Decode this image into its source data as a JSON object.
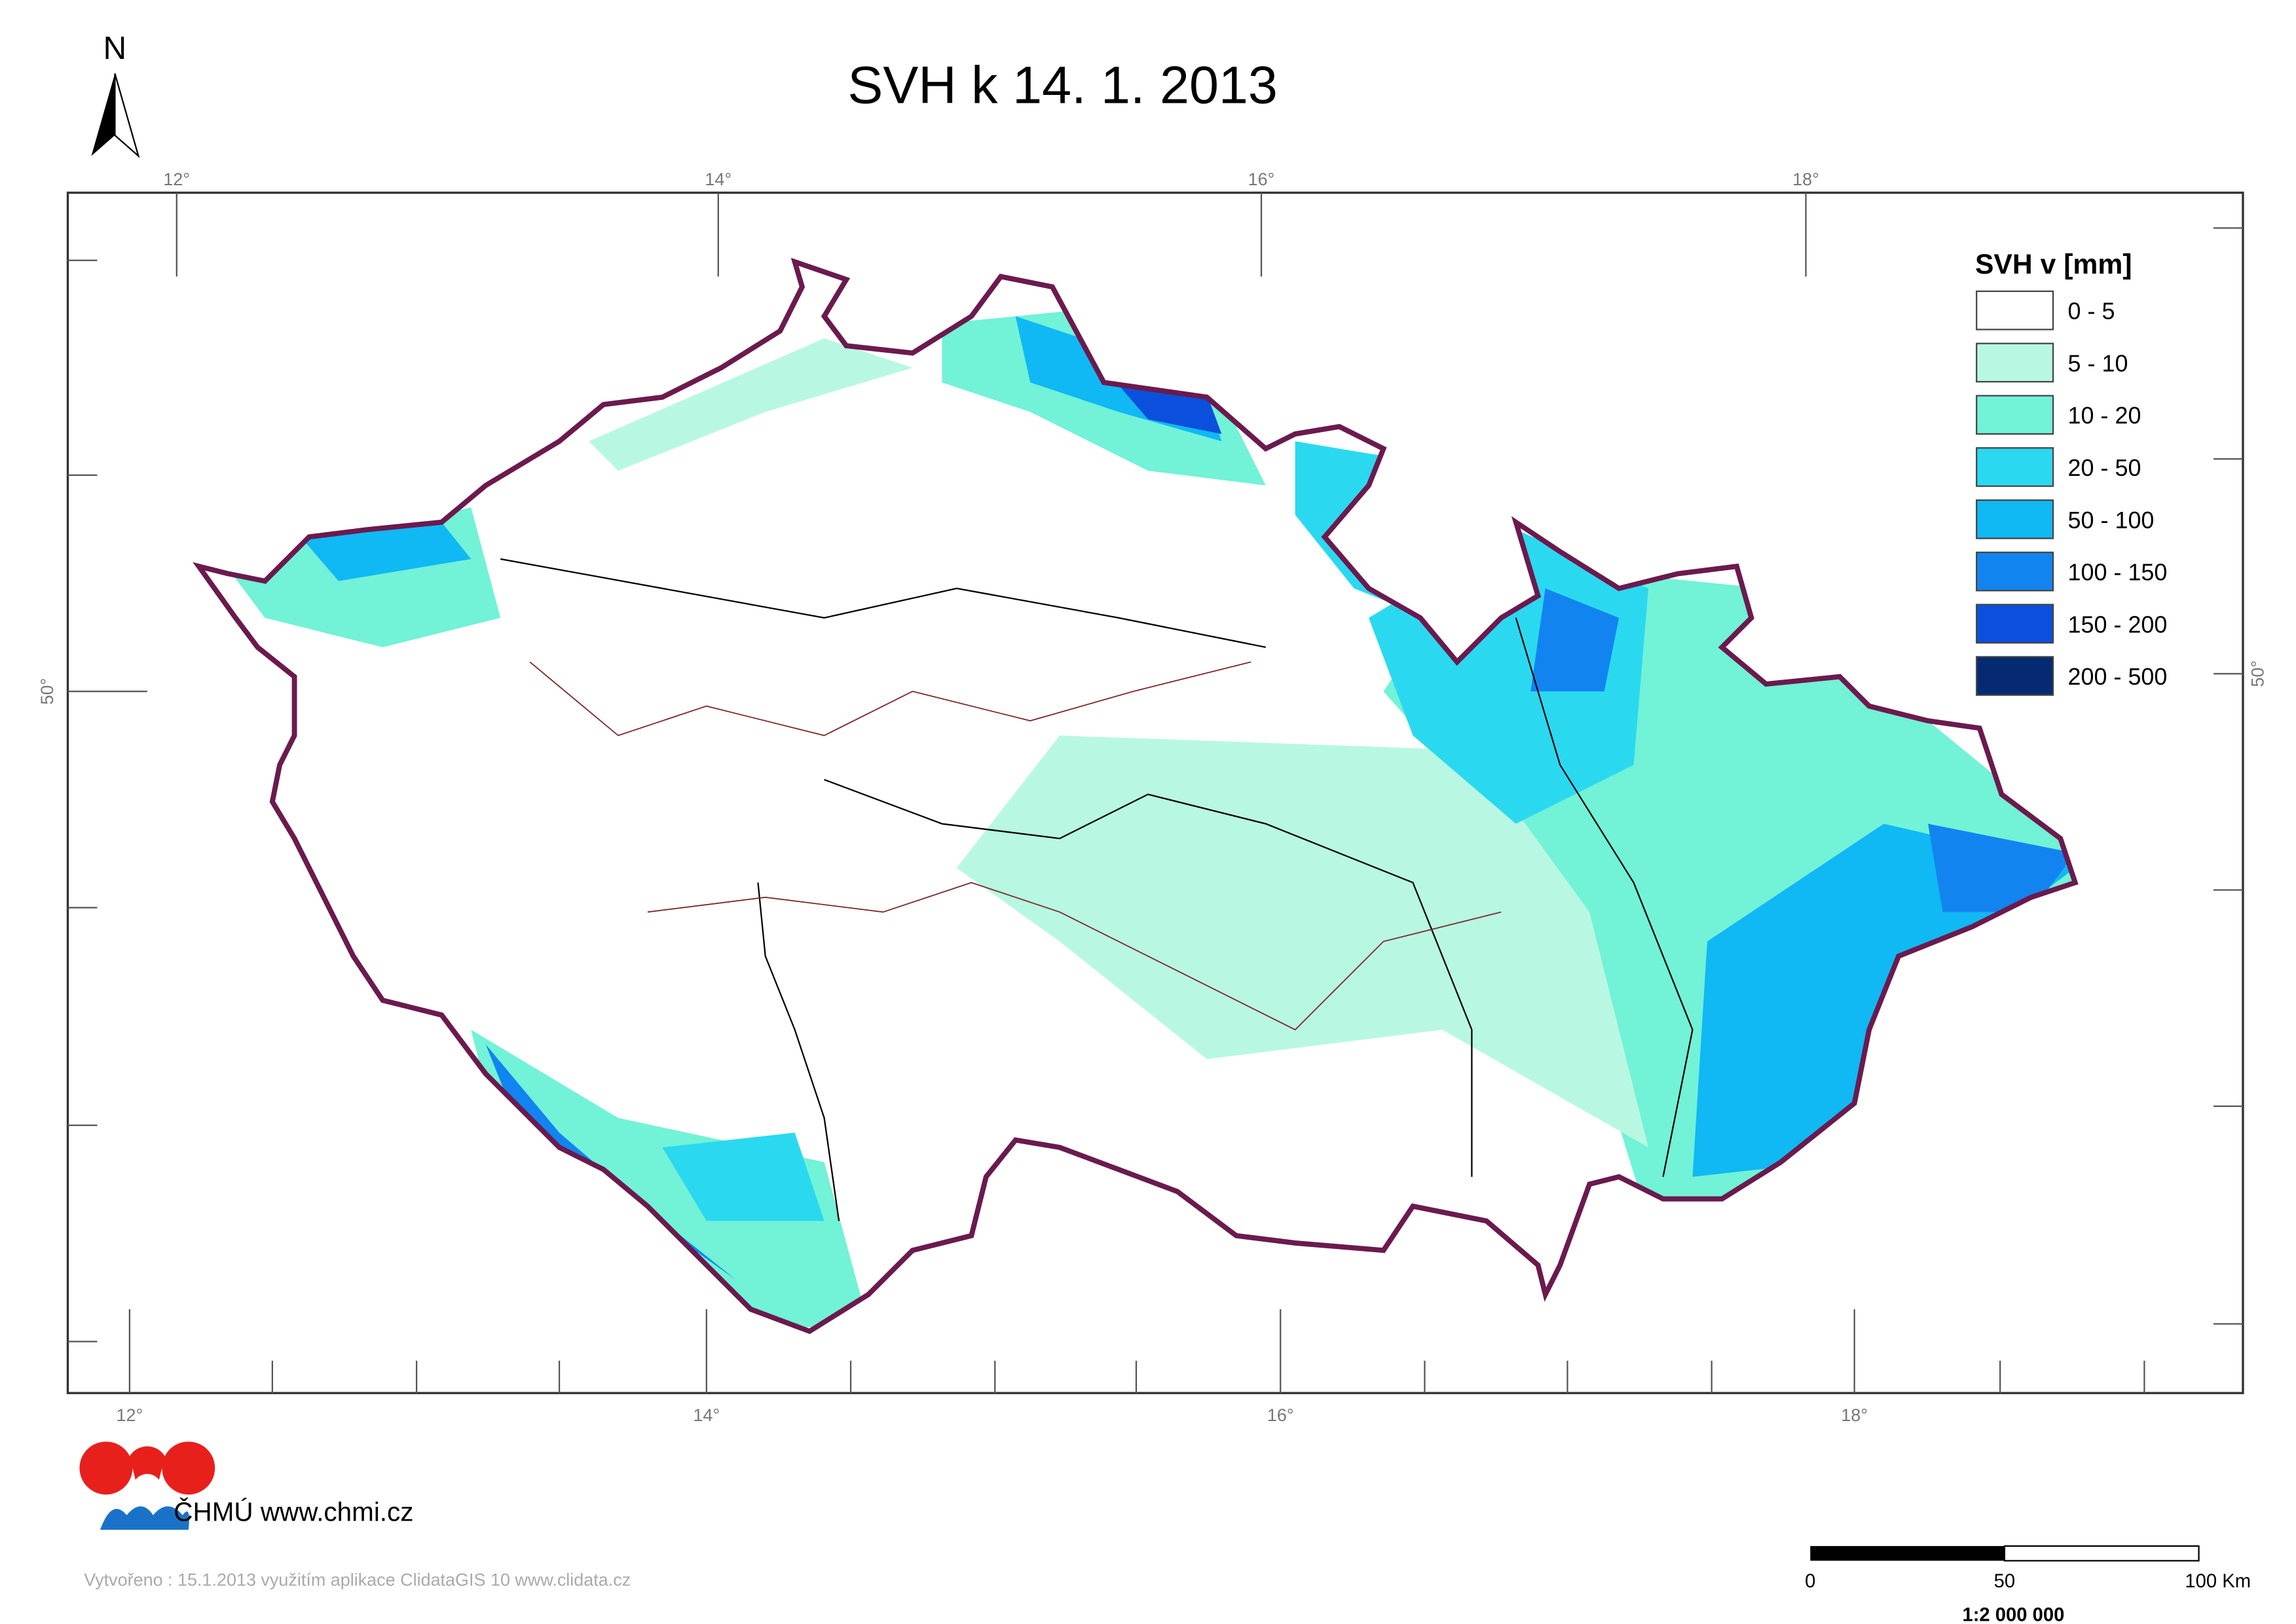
{
  "title": "SVH k 14. 1. 2013",
  "north_label": "N",
  "graticule": {
    "top": [
      "12°",
      "14°",
      "16°",
      "18°"
    ],
    "bottom": [
      "12°",
      "14°",
      "16°",
      "18°"
    ],
    "left": [
      "50°"
    ],
    "right": [
      "50°"
    ]
  },
  "legend": {
    "title": "SVH v [mm]",
    "items": [
      {
        "label": "0 - 5",
        "color": "#ffffff"
      },
      {
        "label": "5 - 10",
        "color": "#b8f8e2"
      },
      {
        "label": "10 - 20",
        "color": "#72f2d6"
      },
      {
        "label": "20 - 50",
        "color": "#2ad9f0"
      },
      {
        "label": "50 - 100",
        "color": "#10b8f4"
      },
      {
        "label": "100 - 150",
        "color": "#1284f0"
      },
      {
        "label": "150 - 200",
        "color": "#0a50dc"
      },
      {
        "label": "200 - 500",
        "color": "#062a72"
      }
    ]
  },
  "logo_text": "ČHMÚ www.chmi.cz",
  "footer": "Vytvořeno : 15.1.2013 využitím aplikace ClidataGIS 10 www.clidata.cz",
  "scale_bar": {
    "labels": [
      "0",
      "50",
      "100 Km"
    ],
    "ratio": "1:2 000 000"
  }
}
